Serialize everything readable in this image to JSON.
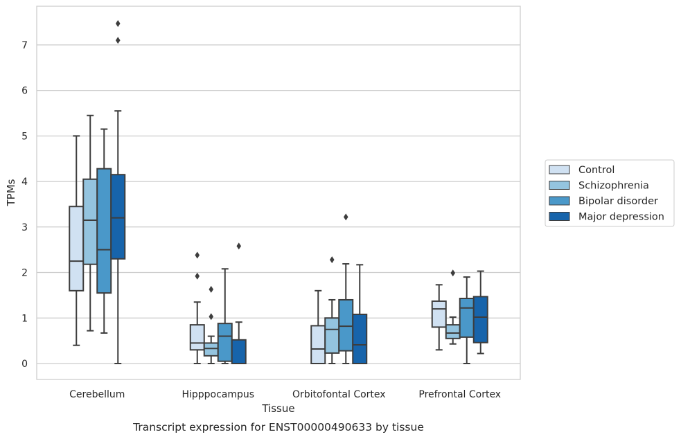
{
  "chart_data": {
    "type": "boxplot",
    "caption": "Transcript expression for ENST00000490633 by tissue",
    "xlabel": "Tissue",
    "ylabel": "TPMs",
    "ylim": [
      -0.35,
      7.85
    ],
    "yticks": [
      0,
      1,
      2,
      3,
      4,
      5,
      6,
      7
    ],
    "grid": "horizontal",
    "legend_position": "right",
    "categories": [
      "Cerebellum",
      "Hipppocampus",
      "Orbitofontal Cortex",
      "Prefrontal Cortex"
    ],
    "series": [
      {
        "name": "Control",
        "color": "#d0e1f2",
        "boxes": [
          {
            "whislo": 0.4,
            "q1": 1.6,
            "med": 2.25,
            "q3": 3.45,
            "whishi": 5.0,
            "fliers": []
          },
          {
            "whislo": 0.0,
            "q1": 0.3,
            "med": 0.45,
            "q3": 0.85,
            "whishi": 1.35,
            "fliers": [
              1.92,
              2.38
            ]
          },
          {
            "whislo": 0.0,
            "q1": 0.0,
            "med": 0.32,
            "q3": 0.83,
            "whishi": 1.6,
            "fliers": []
          },
          {
            "whislo": 0.3,
            "q1": 0.8,
            "med": 1.2,
            "q3": 1.37,
            "whishi": 1.73,
            "fliers": []
          }
        ]
      },
      {
        "name": "Schizophrenia",
        "color": "#94c4df",
        "boxes": [
          {
            "whislo": 0.72,
            "q1": 2.18,
            "med": 3.15,
            "q3": 4.05,
            "whishi": 5.45,
            "fliers": []
          },
          {
            "whislo": 0.0,
            "q1": 0.17,
            "med": 0.33,
            "q3": 0.45,
            "whishi": 0.6,
            "fliers": [
              1.03,
              1.63
            ]
          },
          {
            "whislo": 0.0,
            "q1": 0.23,
            "med": 0.75,
            "q3": 1.0,
            "whishi": 1.4,
            "fliers": [
              2.28
            ]
          },
          {
            "whislo": 0.43,
            "q1": 0.55,
            "med": 0.67,
            "q3": 0.85,
            "whishi": 1.02,
            "fliers": [
              1.99
            ]
          }
        ]
      },
      {
        "name": "Bipolar disorder",
        "color": "#4a98c9",
        "boxes": [
          {
            "whislo": 0.67,
            "q1": 1.55,
            "med": 2.5,
            "q3": 4.28,
            "whishi": 5.15,
            "fliers": []
          },
          {
            "whislo": 0.0,
            "q1": 0.05,
            "med": 0.6,
            "q3": 0.88,
            "whishi": 2.08,
            "fliers": []
          },
          {
            "whislo": 0.0,
            "q1": 0.28,
            "med": 0.82,
            "q3": 1.4,
            "whishi": 2.19,
            "fliers": [
              3.22
            ]
          },
          {
            "whislo": 0.0,
            "q1": 0.58,
            "med": 1.22,
            "q3": 1.43,
            "whishi": 1.9,
            "fliers": []
          }
        ]
      },
      {
        "name": "Major depression",
        "color": "#1764ab",
        "boxes": [
          {
            "whislo": 0.0,
            "q1": 2.3,
            "med": 3.2,
            "q3": 4.15,
            "whishi": 5.55,
            "fliers": [
              7.1,
              7.47
            ]
          },
          {
            "whislo": 0.0,
            "q1": 0.0,
            "med": 0.0,
            "q3": 0.52,
            "whishi": 0.91,
            "fliers": [
              2.58
            ]
          },
          {
            "whislo": 0.0,
            "q1": 0.0,
            "med": 0.41,
            "q3": 1.08,
            "whishi": 2.17,
            "fliers": []
          },
          {
            "whislo": 0.22,
            "q1": 0.46,
            "med": 1.02,
            "q3": 1.47,
            "whishi": 2.03,
            "fliers": []
          }
        ]
      }
    ]
  }
}
